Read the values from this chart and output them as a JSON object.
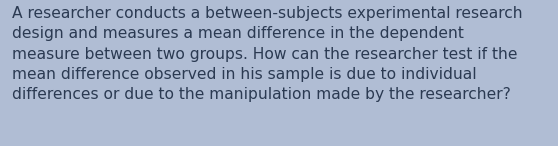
{
  "background_color": "#b0bdd4",
  "text_color": "#2b3a52",
  "text": "A researcher conducts a between-subjects experimental research\ndesign and measures a mean difference in the dependent\nmeasure between two groups. How can the researcher test if the\nmean difference observed in his sample is due to individual\ndifferences or due to the manipulation made by the researcher?",
  "font_size": 11.2,
  "fig_width": 5.58,
  "fig_height": 1.46,
  "dpi": 100
}
